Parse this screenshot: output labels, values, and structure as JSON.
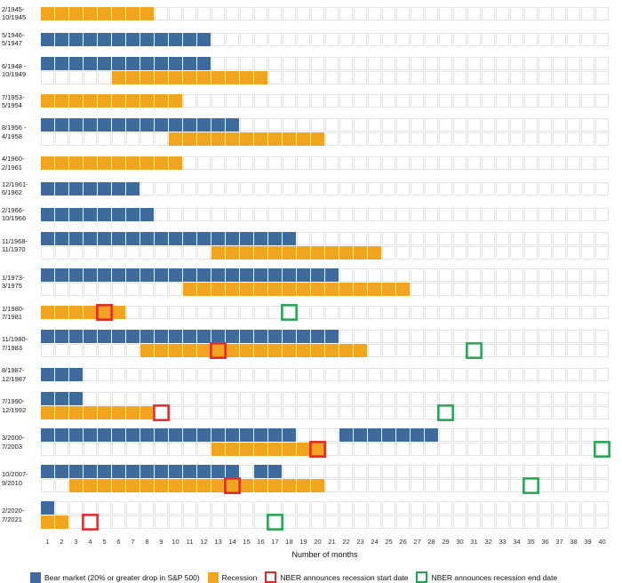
{
  "chart_data": {
    "type": "heatmap",
    "xlabel": "Number of months",
    "x_range": [
      1,
      40
    ],
    "grid": true,
    "legend_position": "bottom",
    "colors": {
      "bear": "#3f6a9d",
      "recession": "#f0a41f",
      "nber_start": "#e32726",
      "nber_end": "#1ea54e",
      "grid": "#e4e4e4"
    },
    "legend": [
      {
        "label": "Bear market (20% or greater drop in S&P 500)",
        "style": "filled",
        "color_key": "bear"
      },
      {
        "label": "Recession",
        "style": "filled",
        "color_key": "recession"
      },
      {
        "label": "NBER announces recession start date",
        "style": "outline",
        "color_key": "nber_start"
      },
      {
        "label": "NBER announces recession end date",
        "style": "outline",
        "color_key": "nber_end"
      }
    ],
    "rows": [
      {
        "label1": "2/1945-",
        "label2": "10/1945",
        "bear": [],
        "recession": [
          [
            1,
            8
          ]
        ],
        "nber_start": null,
        "nber_end": null
      },
      {
        "label1": "5/1946-",
        "label2": "5/1947",
        "bear": [
          [
            1,
            12
          ]
        ],
        "recession": [],
        "nber_start": null,
        "nber_end": null
      },
      {
        "label1": "6/1948 -",
        "label2": "10/1949",
        "bear": [
          [
            1,
            12
          ]
        ],
        "recession": [
          [
            6,
            16
          ]
        ],
        "nber_start": null,
        "nber_end": null
      },
      {
        "label1": "7/1953-",
        "label2": "5/1954",
        "bear": [],
        "recession": [
          [
            1,
            10
          ]
        ],
        "nber_start": null,
        "nber_end": null
      },
      {
        "label1": "8/1956 -",
        "label2": "4/1958",
        "bear": [
          [
            1,
            14
          ]
        ],
        "recession": [
          [
            10,
            20
          ]
        ],
        "nber_start": null,
        "nber_end": null
      },
      {
        "label1": "4/1960-",
        "label2": "2/1961",
        "bear": [],
        "recession": [
          [
            1,
            10
          ]
        ],
        "nber_start": null,
        "nber_end": null
      },
      {
        "label1": "12/1961-",
        "label2": "6/1962",
        "bear": [
          [
            1,
            7
          ]
        ],
        "recession": [],
        "nber_start": null,
        "nber_end": null
      },
      {
        "label1": "2/1966-",
        "label2": "10/1966",
        "bear": [
          [
            1,
            8
          ]
        ],
        "recession": [],
        "nber_start": null,
        "nber_end": null
      },
      {
        "label1": "11/1968-",
        "label2": "11/1970",
        "bear": [
          [
            1,
            18
          ]
        ],
        "recession": [
          [
            13,
            24
          ]
        ],
        "nber_start": null,
        "nber_end": null
      },
      {
        "label1": "1/1973-",
        "label2": "3/1975",
        "bear": [
          [
            1,
            21
          ]
        ],
        "recession": [
          [
            11,
            26
          ]
        ],
        "nber_start": null,
        "nber_end": null
      },
      {
        "label1": "1/1980-",
        "label2": "7/1981",
        "bear": [],
        "recession": [
          [
            1,
            6
          ]
        ],
        "nber_start": 5,
        "nber_end": 18
      },
      {
        "label1": "11/1980-",
        "label2": "7/1983",
        "bear": [
          [
            1,
            21
          ]
        ],
        "recession": [
          [
            8,
            23
          ]
        ],
        "nber_start": 13,
        "nber_end": 31
      },
      {
        "label1": "8/1987-",
        "label2": "12/1987",
        "bear": [
          [
            1,
            3
          ]
        ],
        "recession": [],
        "nber_start": null,
        "nber_end": null
      },
      {
        "label1": "7/1990-",
        "label2": "12/1992",
        "bear": [
          [
            1,
            3
          ]
        ],
        "recession": [
          [
            1,
            8
          ]
        ],
        "nber_start": 9,
        "nber_end": 29
      },
      {
        "label1": "3/2000-",
        "label2": "7/2003",
        "bear": [
          [
            1,
            18
          ],
          [
            22,
            28
          ]
        ],
        "recession": [
          [
            13,
            20
          ]
        ],
        "nber_start": 20,
        "nber_end": 40
      },
      {
        "label1": "10/2007-",
        "label2": "9/2010",
        "bear": [
          [
            1,
            14
          ],
          [
            16,
            17
          ]
        ],
        "recession": [
          [
            3,
            20
          ]
        ],
        "nber_start": 14,
        "nber_end": 35
      },
      {
        "label1": "2/2020-",
        "label2": "7/2021",
        "bear": [
          [
            1,
            1
          ]
        ],
        "recession": [
          [
            1,
            2
          ]
        ],
        "nber_start": 4,
        "nber_end": 17
      }
    ]
  }
}
